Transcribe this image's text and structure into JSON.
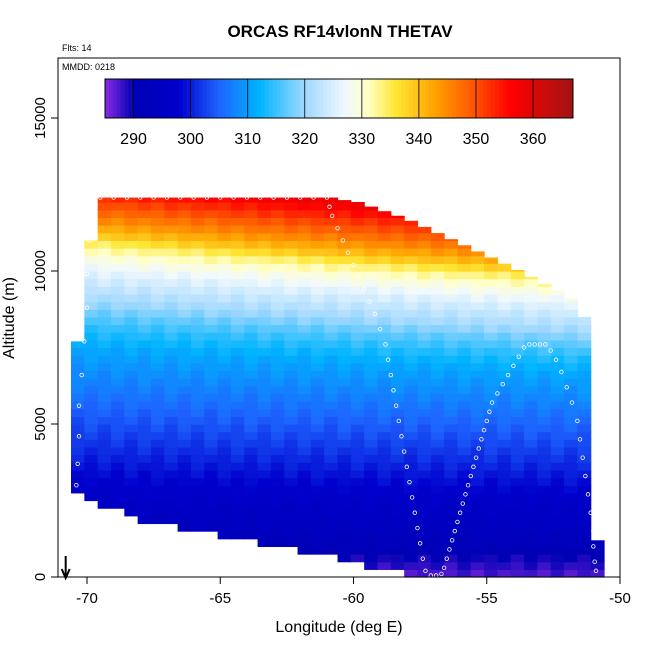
{
  "chart_data": {
    "type": "heatmap",
    "title": "ORCAS RF14vlonN THETAV",
    "note_flights": "Flts: 14",
    "note_date": "MMDD: 0218",
    "xlabel": "Longitude (deg E)",
    "ylabel": "Altitude (m)",
    "xlim": [
      -71,
      -50
    ],
    "ylim": [
      0,
      16500
    ],
    "x_ticks": [
      "-70",
      "-65",
      "-60",
      "-55",
      "-50"
    ],
    "x_tick_values": [
      -70,
      -65,
      -60,
      -55,
      -50
    ],
    "y_ticks": [
      "0",
      "5000",
      "10000",
      "15000"
    ],
    "y_tick_values": [
      0,
      5000,
      10000,
      15000
    ],
    "colorbar": {
      "range": [
        285,
        367
      ],
      "tick_labels": [
        "290",
        "300",
        "310",
        "320",
        "330",
        "340",
        "350",
        "360"
      ],
      "tick_values": [
        290,
        300,
        310,
        320,
        330,
        340,
        350,
        360
      ],
      "stops": [
        {
          "v": 285,
          "c": "#8a2be2"
        },
        {
          "v": 290,
          "c": "#0000b4"
        },
        {
          "v": 298,
          "c": "#0000cd"
        },
        {
          "v": 305,
          "c": "#1e64ff"
        },
        {
          "v": 312,
          "c": "#00b4ff"
        },
        {
          "v": 320,
          "c": "#a0d8ff"
        },
        {
          "v": 327,
          "c": "#f0f8ff"
        },
        {
          "v": 331,
          "c": "#ffffc8"
        },
        {
          "v": 336,
          "c": "#ffe632"
        },
        {
          "v": 343,
          "c": "#ffa000"
        },
        {
          "v": 350,
          "c": "#ff5000"
        },
        {
          "v": 356,
          "c": "#ff0000"
        },
        {
          "v": 367,
          "c": "#a01414"
        }
      ]
    },
    "envelope": {
      "lon": [
        -70.2,
        -70.2,
        -70.0,
        -69.8,
        -69.0,
        -68.0,
        -67.0,
        -66.0,
        -64.0,
        -62.0,
        -60.0,
        -58.0,
        -56.0,
        -54.0,
        -52.0,
        -51.0,
        -51.0,
        -51.1,
        -51.4,
        -51.6,
        -51.8,
        -52.5,
        -53.5,
        -54.5,
        -55.5,
        -56.5,
        -57.5,
        -58.5,
        -59.5,
        -60.2,
        -60.6,
        -61.0,
        -62.0,
        -63.0,
        -64.0,
        -65.0,
        -66.0,
        -67.0,
        -68.0,
        -69.0,
        -69.5,
        -70.0,
        -70.2
      ],
      "top": [
        12400,
        12400,
        12400,
        12400,
        12400,
        12400,
        12400,
        12400,
        12400,
        12400,
        12300,
        11700,
        10900,
        10100,
        9200,
        8600,
        1400,
        3700,
        5400,
        6200,
        7700,
        8600,
        9500,
        10200,
        10800,
        11400,
        11900,
        12100,
        12400,
        12400,
        12400,
        12400,
        12400,
        12400,
        12400,
        12400,
        12400,
        12400,
        12400,
        12400,
        12400,
        12400,
        12400
      ],
      "bottom": [
        2800,
        2800,
        2700,
        2600,
        2300,
        2000,
        1800,
        1600,
        1300,
        1000,
        600,
        250,
        0,
        0,
        0,
        0,
        0,
        0,
        0,
        0,
        0,
        0,
        0,
        0,
        0,
        0,
        0,
        0,
        0,
        0,
        0,
        0,
        0,
        0,
        0,
        0,
        0,
        0,
        0,
        0,
        0,
        0,
        0
      ],
      "note_top": "",
      "note_bottom": ""
    },
    "theta_profile": {
      "note": "",
      "alt": [
        0,
        800,
        1200,
        1800,
        2600,
        3500,
        4500,
        5500,
        6500,
        7500,
        8100,
        8600,
        9000,
        9500,
        10000,
        10500,
        10900,
        11200,
        11700,
        12400,
        13000
      ],
      "theta": [
        287,
        290,
        292,
        294,
        296,
        299,
        302,
        305,
        308,
        311,
        314,
        317,
        320,
        323,
        326,
        330,
        334,
        339,
        345,
        352,
        358
      ]
    },
    "track": {
      "points": [
        [
          -70.4,
          3000
        ],
        [
          -70.35,
          3700
        ],
        [
          -70.3,
          4600
        ],
        [
          -70.3,
          5600
        ],
        [
          -70.2,
          6600
        ],
        [
          -70.1,
          7700
        ],
        [
          -70.0,
          8800
        ],
        [
          -70.0,
          9900
        ],
        [
          -69.9,
          11000
        ],
        [
          -69.8,
          11800
        ],
        [
          -69.7,
          12400
        ],
        [
          -69.5,
          12400
        ],
        [
          -69.0,
          12400
        ],
        [
          -68.5,
          12400
        ],
        [
          -68.0,
          12400
        ],
        [
          -67.5,
          12400
        ],
        [
          -67.0,
          12400
        ],
        [
          -66.5,
          12400
        ],
        [
          -66.0,
          12400
        ],
        [
          -65.5,
          12400
        ],
        [
          -65.0,
          12400
        ],
        [
          -64.5,
          12400
        ],
        [
          -64.0,
          12400
        ],
        [
          -63.5,
          12400
        ],
        [
          -63.0,
          12400
        ],
        [
          -62.5,
          12400
        ],
        [
          -62.0,
          12400
        ],
        [
          -61.5,
          12400
        ],
        [
          -61.0,
          12400
        ],
        [
          -60.9,
          12100
        ],
        [
          -60.8,
          11800
        ],
        [
          -60.6,
          11400
        ],
        [
          -60.4,
          11000
        ],
        [
          -60.2,
          10600
        ],
        [
          -60.0,
          10200
        ],
        [
          -59.8,
          9800
        ],
        [
          -59.6,
          9400
        ],
        [
          -59.4,
          9000
        ],
        [
          -59.2,
          8600
        ],
        [
          -59.0,
          8100
        ],
        [
          -58.8,
          7600
        ],
        [
          -58.7,
          7100
        ],
        [
          -58.6,
          6600
        ],
        [
          -58.5,
          6100
        ],
        [
          -58.4,
          5600
        ],
        [
          -58.3,
          5100
        ],
        [
          -58.2,
          4600
        ],
        [
          -58.1,
          4100
        ],
        [
          -58.0,
          3600
        ],
        [
          -57.9,
          3100
        ],
        [
          -57.8,
          2600
        ],
        [
          -57.7,
          2100
        ],
        [
          -57.6,
          1600
        ],
        [
          -57.5,
          1100
        ],
        [
          -57.4,
          600
        ],
        [
          -57.3,
          200
        ],
        [
          -57.1,
          50
        ],
        [
          -56.9,
          50
        ],
        [
          -56.7,
          100
        ],
        [
          -56.6,
          300
        ],
        [
          -56.5,
          600
        ],
        [
          -56.4,
          900
        ],
        [
          -56.3,
          1200
        ],
        [
          -56.2,
          1500
        ],
        [
          -56.1,
          1800
        ],
        [
          -56.0,
          2100
        ],
        [
          -55.9,
          2400
        ],
        [
          -55.8,
          2700
        ],
        [
          -55.7,
          3000
        ],
        [
          -55.6,
          3300
        ],
        [
          -55.5,
          3600
        ],
        [
          -55.4,
          3900
        ],
        [
          -55.3,
          4200
        ],
        [
          -55.2,
          4500
        ],
        [
          -55.1,
          4800
        ],
        [
          -55.0,
          5100
        ],
        [
          -54.9,
          5400
        ],
        [
          -54.8,
          5700
        ],
        [
          -54.6,
          6000
        ],
        [
          -54.4,
          6300
        ],
        [
          -54.2,
          6600
        ],
        [
          -54.0,
          6900
        ],
        [
          -53.8,
          7200
        ],
        [
          -53.6,
          7500
        ],
        [
          -53.4,
          7600
        ],
        [
          -53.2,
          7600
        ],
        [
          -53.0,
          7600
        ],
        [
          -52.8,
          7600
        ],
        [
          -52.6,
          7400
        ],
        [
          -52.4,
          7100
        ],
        [
          -52.2,
          6700
        ],
        [
          -52.0,
          6200
        ],
        [
          -51.8,
          5700
        ],
        [
          -51.6,
          5100
        ],
        [
          -51.5,
          4500
        ],
        [
          -51.4,
          3900
        ],
        [
          -51.3,
          3300
        ],
        [
          -51.2,
          2700
        ],
        [
          -51.1,
          2100
        ],
        [
          -51.0,
          1500
        ],
        [
          -51.0,
          1000
        ],
        [
          -50.95,
          500
        ],
        [
          -50.9,
          200
        ]
      ]
    },
    "arrow_lon": -70.8,
    "legend_placement": "none",
    "grid": false
  },
  "colors": {
    "axis": "#000000",
    "track_points": "#ffffff"
  }
}
